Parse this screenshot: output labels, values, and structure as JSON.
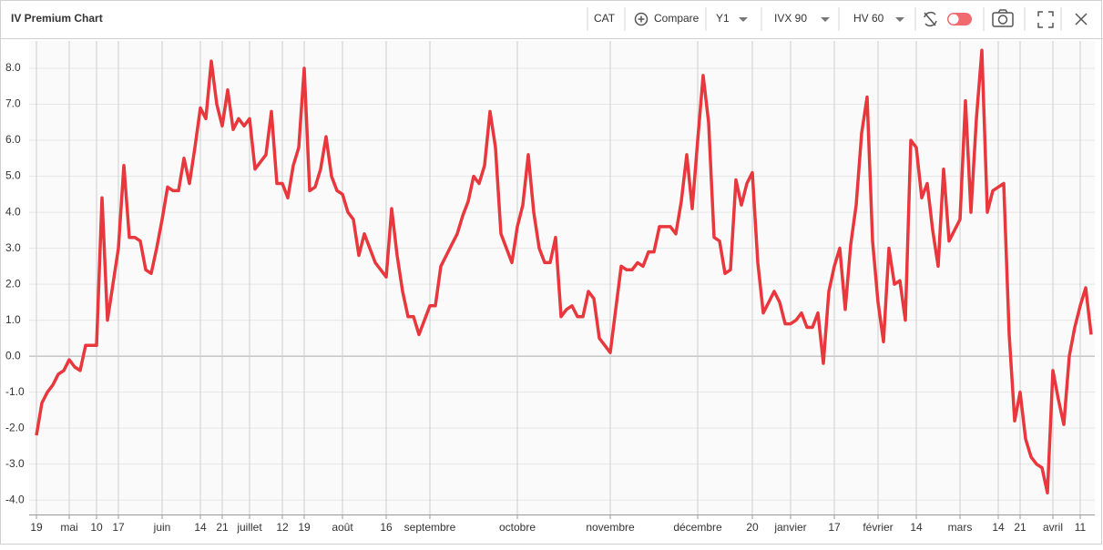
{
  "toolbar": {
    "title": "IV Premium Chart",
    "ticker": "CAT",
    "compare": "Compare",
    "axis": "Y1",
    "iv": "IVX 90",
    "hv": "HV 60"
  },
  "chart_data": {
    "type": "line",
    "color": "#e8383d",
    "grid": true,
    "ylim": [
      -4.4,
      8.76
    ],
    "yticks": [
      {
        "value": -4,
        "label": "-4.0"
      },
      {
        "value": -3,
        "label": "-3.0"
      },
      {
        "value": -2,
        "label": "-2.0"
      },
      {
        "value": -1,
        "label": "-1.0"
      },
      {
        "value": 0,
        "label": "0.0"
      },
      {
        "value": 1,
        "label": "1.0"
      },
      {
        "value": 2,
        "label": "2.0"
      },
      {
        "value": 3,
        "label": "3.0"
      },
      {
        "value": 4,
        "label": "4.0"
      },
      {
        "value": 5,
        "label": "5.0"
      },
      {
        "value": 6,
        "label": "6.0"
      },
      {
        "value": 7,
        "label": "7.0"
      },
      {
        "value": 8,
        "label": "8.0"
      }
    ],
    "categories": [
      "19",
      null,
      null,
      null,
      null,
      null,
      "mai",
      null,
      null,
      null,
      null,
      "10",
      null,
      null,
      null,
      "17",
      null,
      null,
      null,
      null,
      null,
      null,
      null,
      "juin",
      null,
      null,
      null,
      null,
      null,
      null,
      "14",
      null,
      null,
      null,
      "21",
      null,
      null,
      null,
      null,
      "juillet",
      null,
      null,
      null,
      null,
      null,
      "12",
      null,
      null,
      null,
      "19",
      null,
      null,
      null,
      null,
      null,
      null,
      "août",
      null,
      null,
      null,
      null,
      null,
      null,
      null,
      "16",
      null,
      null,
      null,
      null,
      null,
      null,
      null,
      "septembre",
      null,
      null,
      null,
      null,
      null,
      null,
      null,
      null,
      null,
      null,
      null,
      null,
      null,
      null,
      null,
      "octobre",
      null,
      null,
      null,
      null,
      null,
      null,
      null,
      null,
      null,
      null,
      null,
      null,
      null,
      null,
      null,
      null,
      "novembre",
      null,
      null,
      null,
      null,
      null,
      null,
      null,
      null,
      null,
      null,
      null,
      null,
      null,
      null,
      null,
      "décembre",
      null,
      null,
      null,
      null,
      null,
      null,
      null,
      null,
      null,
      "20",
      null,
      null,
      null,
      null,
      null,
      null,
      "janvier",
      null,
      null,
      null,
      null,
      null,
      null,
      null,
      "17",
      null,
      null,
      null,
      null,
      null,
      null,
      null,
      "février",
      null,
      null,
      null,
      null,
      null,
      null,
      "14",
      null,
      null,
      null,
      null,
      null,
      null,
      null,
      "mars",
      null,
      null,
      null,
      null,
      null,
      null,
      "14",
      null,
      null,
      null,
      "21",
      null,
      null,
      null,
      null,
      null,
      "avril",
      null,
      null,
      null,
      null,
      "11",
      null,
      null
    ],
    "values": [
      -2.2,
      -1.3,
      -1.0,
      -0.8,
      -0.5,
      -0.4,
      -0.1,
      -0.3,
      -0.4,
      0.3,
      0.3,
      0.3,
      4.4,
      1.0,
      2.0,
      3.0,
      5.3,
      3.3,
      3.3,
      3.2,
      2.4,
      2.3,
      3.0,
      3.8,
      4.7,
      4.6,
      4.6,
      5.5,
      4.8,
      5.8,
      6.9,
      6.6,
      8.2,
      7.0,
      6.4,
      7.4,
      6.3,
      6.6,
      6.4,
      6.6,
      5.2,
      5.4,
      5.6,
      6.8,
      4.8,
      4.8,
      4.4,
      5.3,
      5.8,
      8.0,
      4.6,
      4.7,
      5.2,
      6.1,
      5.0,
      4.6,
      4.5,
      4.0,
      3.8,
      2.8,
      3.4,
      3.0,
      2.6,
      2.4,
      2.2,
      4.1,
      2.8,
      1.8,
      1.1,
      1.1,
      0.6,
      1.0,
      1.4,
      1.4,
      2.5,
      2.8,
      3.1,
      3.4,
      3.9,
      4.3,
      5.0,
      4.8,
      5.3,
      6.8,
      5.8,
      3.4,
      3.0,
      2.6,
      3.6,
      4.2,
      5.6,
      4.0,
      3.0,
      2.6,
      2.6,
      3.3,
      1.1,
      1.3,
      1.4,
      1.1,
      1.1,
      1.8,
      1.6,
      0.5,
      0.3,
      0.1,
      1.3,
      2.5,
      2.4,
      2.4,
      2.6,
      2.5,
      2.9,
      2.9,
      3.6,
      3.6,
      3.6,
      3.4,
      4.3,
      5.6,
      4.1,
      6.0,
      7.8,
      6.5,
      3.3,
      3.2,
      2.3,
      2.4,
      4.9,
      4.2,
      4.8,
      5.1,
      2.6,
      1.2,
      1.5,
      1.8,
      1.5,
      0.9,
      0.9,
      1.0,
      1.2,
      0.8,
      0.8,
      1.2,
      -0.2,
      1.8,
      2.5,
      3.0,
      1.3,
      3.1,
      4.2,
      6.2,
      7.2,
      3.2,
      1.5,
      0.4,
      3.0,
      2.0,
      2.1,
      1.0,
      6.0,
      5.8,
      4.4,
      4.8,
      3.5,
      2.5,
      5.2,
      3.2,
      3.5,
      3.8,
      7.1,
      4.0,
      6.6,
      8.5,
      4.0,
      4.6,
      4.7,
      4.8,
      0.6,
      -1.8,
      -1.0,
      -2.3,
      -2.8,
      -3.0,
      -3.1,
      -3.8,
      -0.4,
      -1.2,
      -1.9,
      0.0,
      0.8,
      1.4,
      1.9,
      0.6
    ]
  }
}
